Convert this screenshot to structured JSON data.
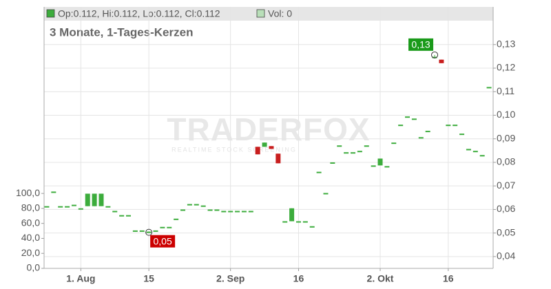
{
  "chart_data": {
    "type": "candlestick",
    "ohlc_label": "Op:0.112, Hi:0.112, Lo:0.112, Cl:0.112",
    "volume_label": "Vol: 0",
    "subtitle": "3 Monate, 1-Tages-Kerzen",
    "watermark": "TRADERFOX",
    "watermark_sub": "REALTIME STOCK SCREENING",
    "up_color": "#3cac3c",
    "down_color": "#c81e1e",
    "grid": true,
    "x": [
      0,
      1,
      2,
      3,
      4,
      5,
      6,
      7,
      8,
      9,
      10,
      11,
      12,
      13,
      14,
      15,
      16,
      17,
      18,
      19,
      20,
      21,
      22,
      23,
      24,
      25,
      26,
      27,
      28,
      29,
      30,
      31,
      32,
      33,
      34,
      35,
      36,
      37,
      38,
      39,
      40,
      41,
      42,
      43,
      44,
      45,
      46,
      47,
      48,
      49,
      50,
      51,
      52,
      53,
      54,
      55,
      56,
      57,
      58,
      59,
      60,
      61,
      62,
      63,
      64,
      65
    ],
    "open": [
      0.0614,
      0.0676,
      0.0614,
      0.0614,
      0.062,
      0.0605,
      0.0614,
      0.0614,
      0.0614,
      0.0614,
      0.0594,
      0.0576,
      0.0576,
      0.0511,
      0.0511,
      0.0506,
      0.0511,
      0.0526,
      0.0526,
      0.0561,
      0.06,
      0.0623,
      0.0623,
      0.0617,
      0.06,
      0.06,
      0.0594,
      0.0594,
      0.0594,
      0.0594,
      0.0594,
      0.0866,
      0.0866,
      0.0869,
      0.0837,
      0.055,
      0.055,
      0.055,
      0.055,
      0.0529,
      0.076,
      0.067,
      0.08,
      0.0872,
      0.0843,
      0.0843,
      0.0849,
      0.0872,
      0.0787,
      0.0787,
      0.0784,
      0.0884,
      0.096,
      0.0995,
      0.0986,
      0.0907,
      0.0934,
      0.1248,
      0.1236,
      0.096,
      0.096,
      0.0922,
      0.0857,
      0.0849,
      0.0831,
      0.112
    ],
    "high": [
      0.0614,
      0.0676,
      0.0614,
      0.0614,
      0.062,
      0.0605,
      0.0667,
      0.0667,
      0.0667,
      0.0614,
      0.0594,
      0.0576,
      0.0576,
      0.0511,
      0.0511,
      0.0506,
      0.0511,
      0.0526,
      0.0526,
      0.0561,
      0.06,
      0.0623,
      0.0623,
      0.0617,
      0.06,
      0.06,
      0.0594,
      0.0594,
      0.0594,
      0.0594,
      0.0594,
      0.0866,
      0.0884,
      0.0869,
      0.0837,
      0.055,
      0.0605,
      0.055,
      0.055,
      0.0529,
      0.076,
      0.067,
      0.08,
      0.0872,
      0.0843,
      0.0843,
      0.0849,
      0.0872,
      0.0787,
      0.0816,
      0.0784,
      0.0884,
      0.096,
      0.0995,
      0.0986,
      0.0907,
      0.0934,
      0.1256,
      0.1236,
      0.096,
      0.096,
      0.0922,
      0.0857,
      0.0849,
      0.0831,
      0.112
    ],
    "low": [
      0.0614,
      0.0676,
      0.0614,
      0.0614,
      0.062,
      0.0605,
      0.0614,
      0.0614,
      0.0614,
      0.0614,
      0.0594,
      0.0576,
      0.0576,
      0.0511,
      0.0511,
      0.0503,
      0.0511,
      0.0526,
      0.0526,
      0.0561,
      0.06,
      0.0623,
      0.0623,
      0.0617,
      0.06,
      0.06,
      0.0594,
      0.0594,
      0.0594,
      0.0594,
      0.0594,
      0.0834,
      0.0866,
      0.0857,
      0.0796,
      0.055,
      0.055,
      0.055,
      0.055,
      0.0529,
      0.076,
      0.067,
      0.08,
      0.0872,
      0.0843,
      0.0843,
      0.0849,
      0.0872,
      0.0787,
      0.0787,
      0.0784,
      0.0884,
      0.096,
      0.0995,
      0.0986,
      0.0907,
      0.0934,
      0.1248,
      0.1221,
      0.096,
      0.096,
      0.0922,
      0.0857,
      0.0849,
      0.0831,
      0.112
    ],
    "close": [
      0.0614,
      0.0676,
      0.0614,
      0.0614,
      0.062,
      0.0605,
      0.0667,
      0.0667,
      0.0667,
      0.0614,
      0.0594,
      0.0576,
      0.0576,
      0.0511,
      0.0511,
      0.0506,
      0.0511,
      0.0526,
      0.0526,
      0.0561,
      0.06,
      0.0623,
      0.0623,
      0.0617,
      0.06,
      0.06,
      0.0594,
      0.0594,
      0.0594,
      0.0594,
      0.0594,
      0.0834,
      0.0884,
      0.0857,
      0.0796,
      0.055,
      0.0605,
      0.055,
      0.055,
      0.0529,
      0.076,
      0.067,
      0.08,
      0.0872,
      0.0843,
      0.0843,
      0.0849,
      0.0872,
      0.0787,
      0.0816,
      0.0784,
      0.0884,
      0.096,
      0.0995,
      0.0986,
      0.0907,
      0.0934,
      0.1248,
      0.1221,
      0.096,
      0.096,
      0.0922,
      0.0857,
      0.0849,
      0.0831,
      0.112
    ],
    "annotations": [
      {
        "text": "0,13",
        "x": 57,
        "value": 0.1256,
        "color": "#1a9a1a"
      },
      {
        "text": "0,05",
        "x": 15,
        "value": 0.0503,
        "color": "#cc0000"
      }
    ],
    "xlim": [
      -0.4,
      65.6
    ],
    "xticks": [
      {
        "value": 5,
        "label": "1. Aug"
      },
      {
        "value": 15,
        "label": "15"
      },
      {
        "value": 27,
        "label": "2. Sep"
      },
      {
        "value": 37,
        "label": "16"
      },
      {
        "value": 49,
        "label": "2. Okt"
      },
      {
        "value": 59,
        "label": "16"
      }
    ],
    "ylim": [
      0.035,
      0.146
    ],
    "yticks": [
      {
        "value": 0.04,
        "label": "0,04"
      },
      {
        "value": 0.05,
        "label": "0,05"
      },
      {
        "value": 0.06,
        "label": "0,06"
      },
      {
        "value": 0.07,
        "label": "0,07"
      },
      {
        "value": 0.08,
        "label": "0,08"
      },
      {
        "value": 0.09,
        "label": "0,09"
      },
      {
        "value": 0.1,
        "label": "0,10"
      },
      {
        "value": 0.11,
        "label": "0,11"
      },
      {
        "value": 0.12,
        "label": "0,12"
      },
      {
        "value": 0.13,
        "label": "0,13"
      }
    ],
    "y2lim": [
      0,
      349
    ],
    "y2ticks": [
      {
        "value": 0,
        "label": "0,0"
      },
      {
        "value": 20,
        "label": "20,0"
      },
      {
        "value": 40,
        "label": "40,0"
      },
      {
        "value": 60,
        "label": "60,0"
      },
      {
        "value": 80,
        "label": "80,0"
      },
      {
        "value": 100,
        "label": "100,0"
      }
    ]
  }
}
